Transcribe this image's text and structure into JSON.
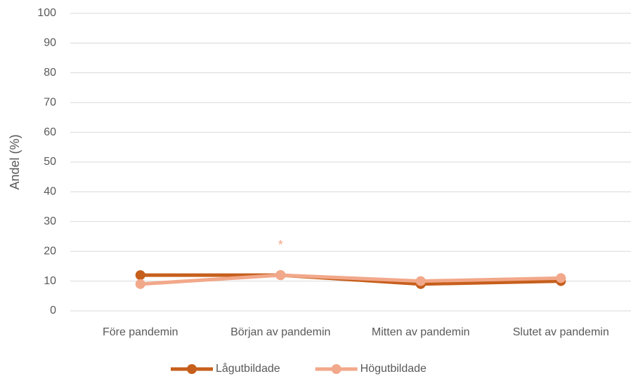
{
  "chart_data": {
    "type": "line",
    "y_label": "Andel (%)",
    "categories": [
      "Före pandemin",
      "Början av pandemin",
      "Mitten av pandemin",
      "Slutet av pandemin"
    ],
    "series": [
      {
        "name": "Lågutbildade",
        "color": "#c65f1c",
        "values": [
          12,
          12,
          9,
          10
        ]
      },
      {
        "name": "Högutbildade",
        "color": "#f2a88a",
        "values": [
          9,
          12,
          10,
          11
        ]
      }
    ],
    "annotations": [
      {
        "text": "*",
        "category": "Början av pandemin",
        "series": "Högutbildade"
      }
    ],
    "ylim": [
      0,
      100
    ],
    "yticks": [
      0,
      10,
      20,
      30,
      40,
      50,
      60,
      70,
      80,
      90,
      100
    ],
    "grid": true,
    "legend": "bottom"
  }
}
